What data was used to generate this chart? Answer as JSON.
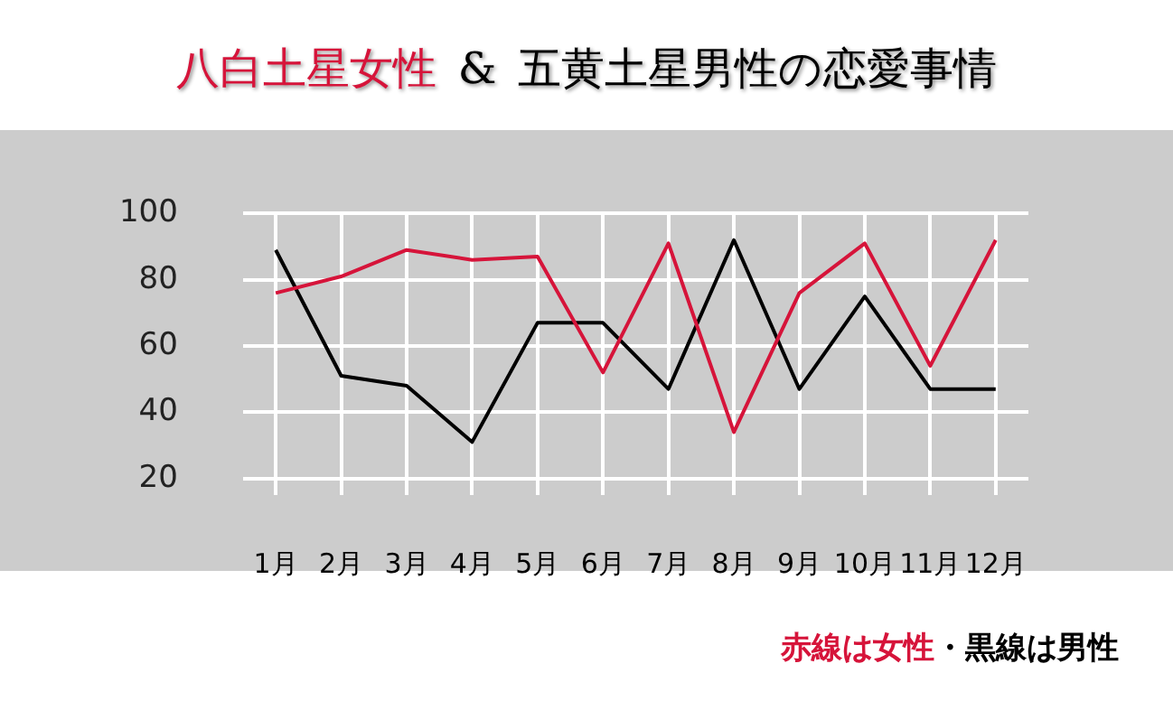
{
  "chart_data": {
    "type": "line",
    "title": "八白土星女性 & 五黄土星男性の恋愛事情",
    "categories": [
      "1月",
      "2月",
      "3月",
      "4月",
      "5月",
      "6月",
      "7月",
      "8月",
      "9月",
      "10月",
      "11月",
      "12月"
    ],
    "series": [
      {
        "color": "#d6143a",
        "values": [
          76,
          81,
          89,
          86,
          87,
          52,
          91,
          34,
          76,
          91,
          54,
          92
        ]
      },
      {
        "color": "#000000",
        "values": [
          89,
          51,
          48,
          31,
          67,
          67,
          47,
          92,
          47,
          75,
          47,
          47
        ]
      }
    ],
    "ylim": [
      15,
      100
    ],
    "yticks": [
      20,
      40,
      60,
      80,
      100
    ],
    "grid": true,
    "legend": false,
    "marker": "none",
    "line_style": "solid",
    "annotations": [
      "赤線は女性・黒線は男性"
    ]
  }
}
